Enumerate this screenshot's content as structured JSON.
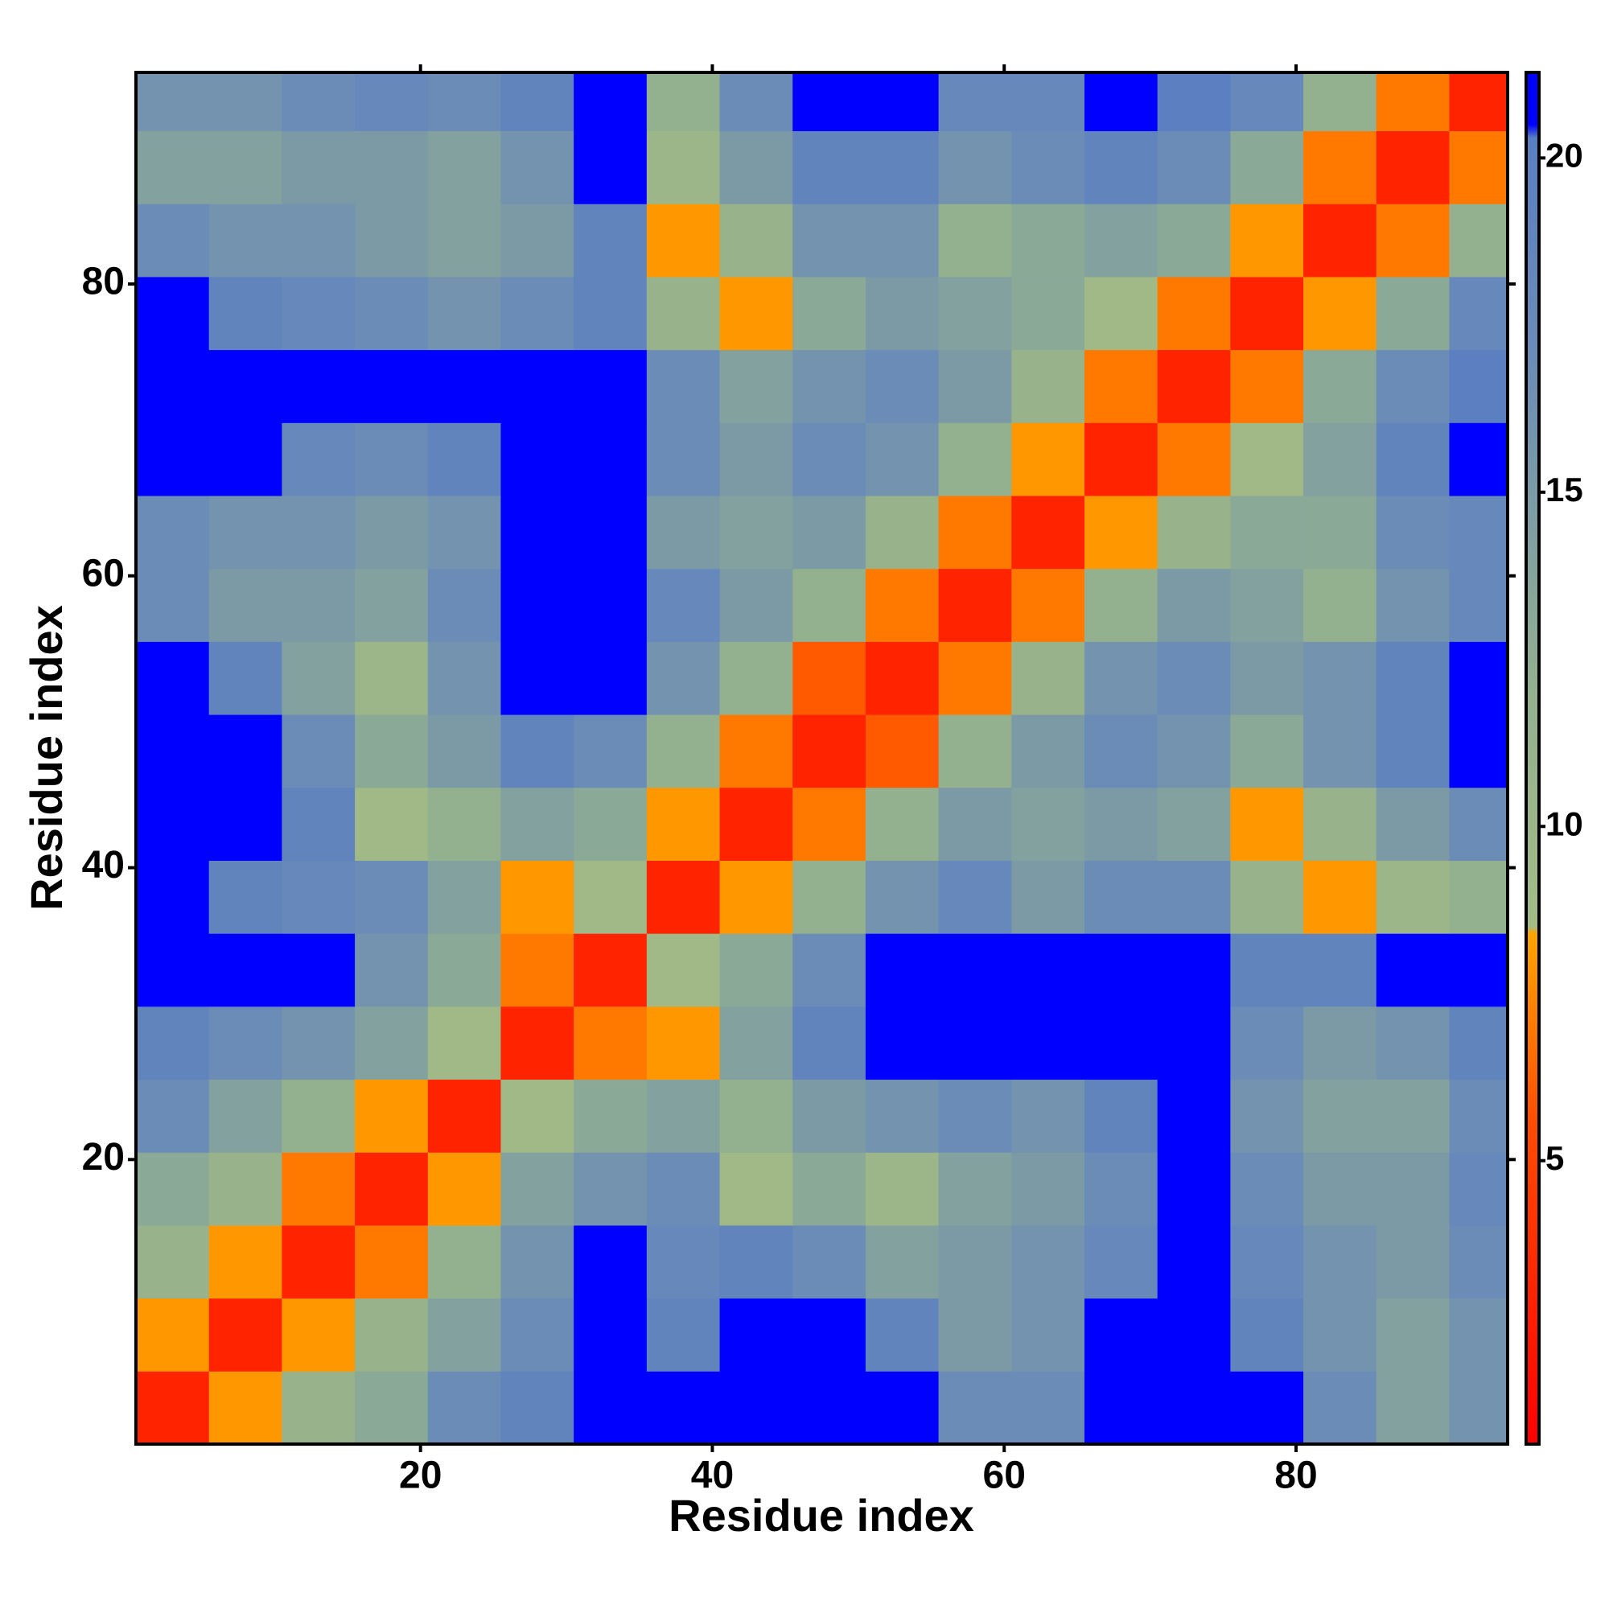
{
  "chart_data": {
    "type": "heatmap",
    "xlabel": "Residue index",
    "ylabel": "Residue index",
    "x": [
      3,
      8,
      13,
      18,
      23,
      28,
      33,
      38,
      43,
      48,
      53,
      58,
      63,
      68,
      73,
      78,
      83,
      88,
      93
    ],
    "y": [
      3,
      8,
      13,
      18,
      23,
      28,
      33,
      38,
      43,
      48,
      53,
      58,
      63,
      68,
      73,
      78,
      83,
      88,
      93
    ],
    "z": [
      [
        3,
        8,
        11,
        13,
        17,
        19,
        21,
        21,
        21,
        21,
        21,
        17,
        17,
        21,
        21,
        21,
        17,
        14,
        16
      ],
      [
        8,
        3,
        8,
        11,
        14,
        17,
        21,
        19,
        21,
        21,
        19,
        15,
        16,
        21,
        21,
        19,
        16,
        14,
        16
      ],
      [
        11,
        8,
        3,
        7,
        12,
        16,
        21,
        18,
        19,
        17,
        14,
        15,
        16,
        18,
        21,
        18,
        16,
        15,
        17
      ],
      [
        13,
        11,
        7,
        3,
        8,
        14,
        16,
        17,
        9,
        13,
        10,
        14,
        15,
        17,
        21,
        17,
        15,
        15,
        18
      ],
      [
        17,
        14,
        12,
        8,
        3,
        9,
        13,
        14,
        12,
        15,
        16,
        17,
        16,
        19,
        21,
        16,
        14,
        14,
        17
      ],
      [
        19,
        17,
        16,
        14,
        9,
        3,
        7,
        8,
        14,
        19,
        21,
        21,
        21,
        21,
        21,
        17,
        15,
        16,
        19
      ],
      [
        21,
        21,
        21,
        16,
        13,
        7,
        3,
        9,
        13,
        17,
        21,
        21,
        21,
        21,
        21,
        19,
        19,
        21,
        21
      ],
      [
        21,
        19,
        18,
        17,
        14,
        8,
        9,
        3,
        8,
        12,
        16,
        18,
        15,
        17,
        17,
        11,
        8,
        10,
        12
      ],
      [
        21,
        21,
        19,
        9,
        12,
        14,
        13,
        8,
        3,
        7,
        12,
        15,
        14,
        15,
        14,
        8,
        11,
        15,
        17
      ],
      [
        21,
        21,
        17,
        13,
        15,
        19,
        17,
        12,
        7,
        3,
        6,
        12,
        15,
        17,
        16,
        13,
        16,
        19,
        21
      ],
      [
        21,
        19,
        14,
        10,
        16,
        21,
        21,
        16,
        12,
        6,
        3,
        7,
        11,
        16,
        17,
        15,
        16,
        19,
        21
      ],
      [
        17,
        15,
        15,
        14,
        17,
        21,
        21,
        18,
        15,
        12,
        7,
        3,
        7,
        12,
        15,
        14,
        12,
        16,
        18
      ],
      [
        17,
        16,
        16,
        15,
        16,
        21,
        21,
        15,
        14,
        15,
        11,
        7,
        3,
        8,
        11,
        13,
        13,
        17,
        18
      ],
      [
        21,
        21,
        18,
        17,
        19,
        21,
        21,
        17,
        15,
        17,
        16,
        12,
        8,
        3,
        7,
        9,
        14,
        19,
        21
      ],
      [
        21,
        21,
        21,
        21,
        21,
        21,
        21,
        17,
        14,
        16,
        17,
        15,
        11,
        7,
        3,
        7,
        13,
        17,
        20
      ],
      [
        21,
        19,
        18,
        17,
        16,
        17,
        19,
        11,
        8,
        13,
        15,
        14,
        13,
        9,
        7,
        3,
        8,
        13,
        18
      ],
      [
        17,
        16,
        16,
        15,
        14,
        15,
        19,
        8,
        11,
        16,
        16,
        12,
        13,
        14,
        13,
        8,
        3,
        7,
        12
      ],
      [
        14,
        14,
        15,
        15,
        14,
        16,
        21,
        10,
        15,
        19,
        19,
        16,
        17,
        19,
        17,
        13,
        7,
        3,
        7
      ],
      [
        16,
        16,
        17,
        18,
        17,
        19,
        21,
        12,
        17,
        21,
        21,
        18,
        18,
        21,
        20,
        18,
        12,
        7,
        3
      ]
    ],
    "xlim": [
      0.5,
      94.5
    ],
    "ylim": [
      0.5,
      94.5
    ],
    "xticks": [
      20,
      40,
      60,
      80
    ],
    "yticks": [
      20,
      40,
      60,
      80
    ],
    "colorbar": {
      "lim": [
        0.76,
        21.28
      ],
      "ticks": [
        5,
        10,
        15,
        20
      ]
    },
    "colorscale": [
      [
        0.76,
        "#ff0000"
      ],
      [
        5.5,
        "#ff4a00"
      ],
      [
        8.4,
        "#ffa500"
      ],
      [
        8.5,
        "#a3bb86"
      ],
      [
        12,
        "#93b08f"
      ],
      [
        17,
        "#6b8cb6"
      ],
      [
        20.3,
        "#5a7ec2"
      ],
      [
        20.5,
        "#0000ff"
      ]
    ]
  }
}
